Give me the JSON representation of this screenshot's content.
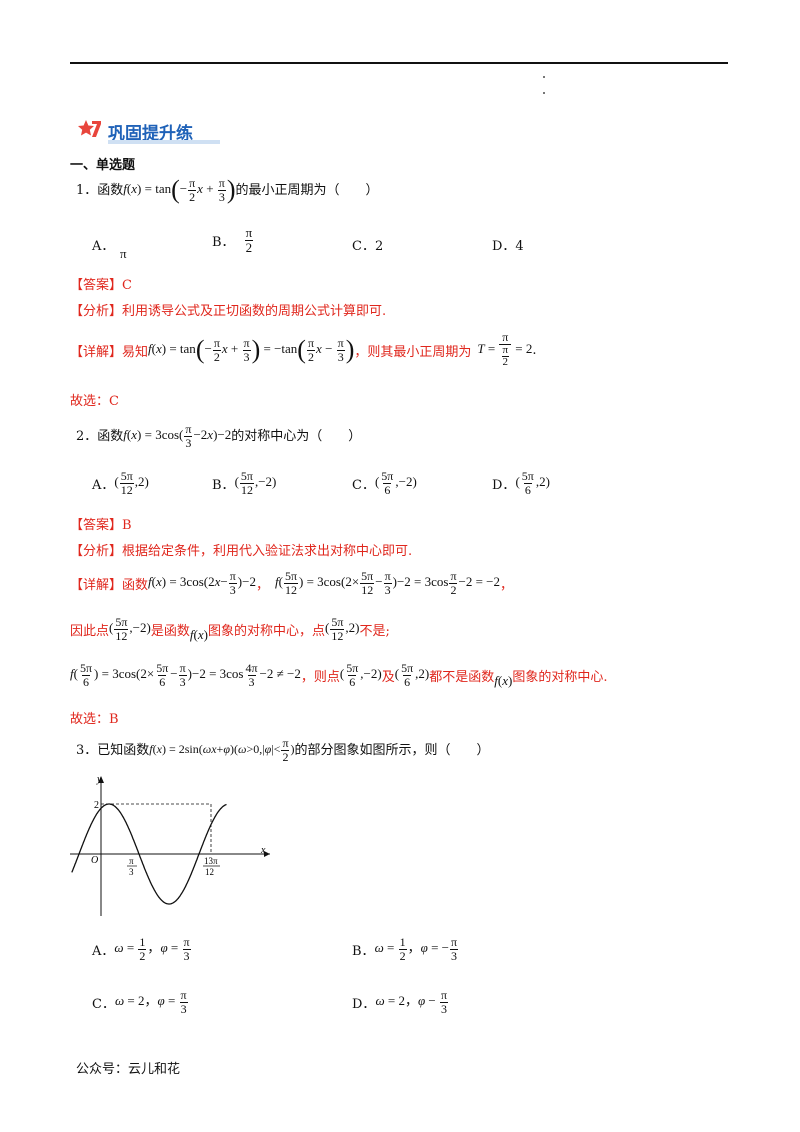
{
  "header": {
    "title": "巩固提升练",
    "section": "一、单选题"
  },
  "q1": {
    "num": "1．",
    "lead": "函数",
    "tail": "的最小正周期为（　　）",
    "opts": [
      "A．",
      "B．",
      "C．2",
      "D．4"
    ],
    "optA_val": "π",
    "answer": "【答案】C",
    "analysis": "【分析】利用诱导公式及正切函数的周期公式计算即可.",
    "detail_lead": "【详解】易知",
    "detail_mid": "，则其最小正周期为",
    "conclusion": "故选：C"
  },
  "q2": {
    "num": "2．",
    "lead": "函数",
    "tail": "的对称中心为（　　）",
    "opts": [
      "A．",
      "B．",
      "C．",
      "D．"
    ],
    "answer": "【答案】B",
    "analysis": "【分析】根据给定条件，利用代入验证法求出对称中心即可.",
    "detail_lead": "【详解】函数",
    "line2_a": "因此点",
    "line2_b": "是函数",
    "line2_c": "图象的对称中心，点",
    "line2_d": "不是;",
    "line3_a": "，则点",
    "line3_b": "及",
    "line3_c": "都不是函数",
    "line3_d": "图象的对称中心.",
    "conclusion": "故选：B"
  },
  "q3": {
    "num": "3．",
    "lead": "已知函数",
    "tail": "的部分图象如图所示，则（　　）",
    "opts": [
      "A．",
      "B．",
      "C．",
      "D．"
    ],
    "graph": {
      "y_label": "y",
      "x_label": "x",
      "origin": "O",
      "max_label": "2",
      "tick1_num": "π",
      "tick1_den": "3",
      "tick2_num": "13π",
      "tick2_den": "12"
    }
  },
  "footer": "公众号：云儿和花"
}
